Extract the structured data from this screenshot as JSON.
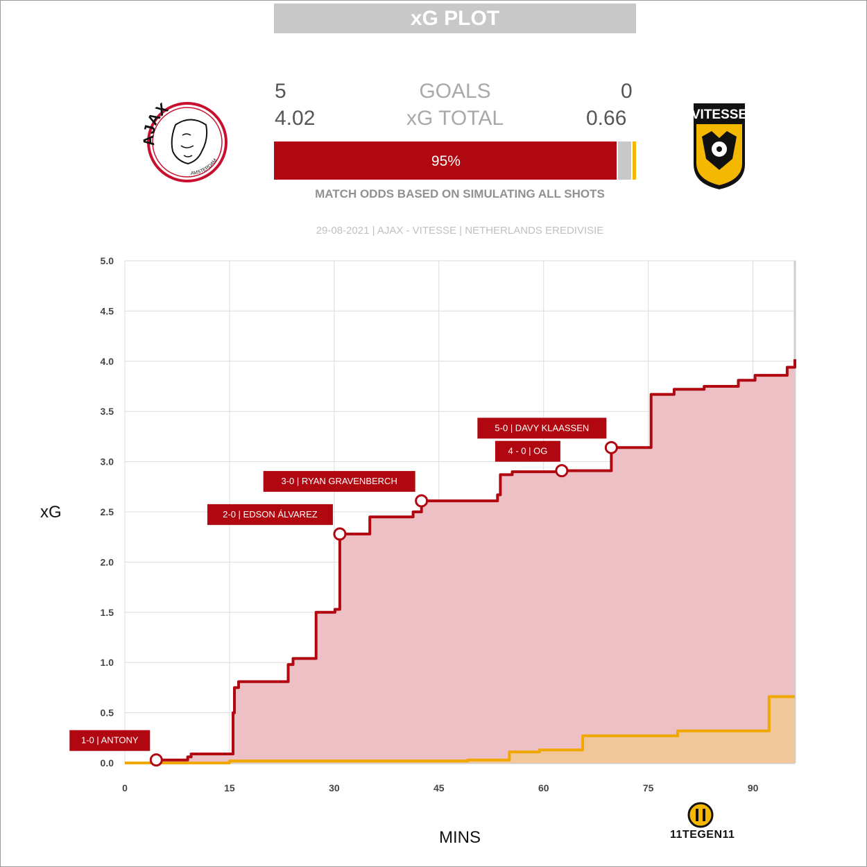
{
  "title": "xG PLOT",
  "home": {
    "team": "AJAX",
    "goals": "5",
    "xg": "4.02",
    "win_pct": 95,
    "color": "#b00710",
    "logo_text_top": "AJAX",
    "logo_text_bottom": "AMSTERDAM"
  },
  "away": {
    "team": "VITESSE",
    "goals": "0",
    "xg": "0.66",
    "win_pct": 1,
    "color": "#f5b800",
    "logo_text": "VITESSE"
  },
  "draw_pct": 4,
  "labels": {
    "goals": "GOALS",
    "xg_total": "xG TOTAL",
    "home_odds": "95%"
  },
  "odds_caption": "MATCH ODDS BASED ON SIMULATING ALL SHOTS",
  "match_info": "29-08-2021 | AJAX - VITESSE | NETHERLANDS EREDIVISIE",
  "branding": {
    "text": "11TEGEN11",
    "icon": "11-tegen-11-logo-icon"
  },
  "chart_data": {
    "type": "line",
    "step": true,
    "xlabel": "MINS",
    "ylabel": "xG",
    "xlim": [
      0,
      96
    ],
    "ylim": [
      0,
      5
    ],
    "xticks": [
      0,
      15,
      30,
      45,
      60,
      75,
      90
    ],
    "yticks": [
      "0.0",
      "0.5",
      "1.0",
      "1.5",
      "2.0",
      "2.5",
      "3.0",
      "3.5",
      "4.0",
      "4.5",
      "5.0"
    ],
    "grid": true,
    "series": [
      {
        "name": "AJAX",
        "color": "#b00710",
        "fill": "#ecc0c4",
        "x": [
          0,
          4.5,
          9,
          9.5,
          15.5,
          15.7,
          16.3,
          23.4,
          24.1,
          27.4,
          30.1,
          30.8,
          35.1,
          41.3,
          42.5,
          53.4,
          53.8,
          55.5,
          62.6,
          69.7,
          75.4,
          78.7,
          83.0,
          87.9,
          90.3,
          94.9,
          96
        ],
        "y": [
          0,
          0.03,
          0.06,
          0.09,
          0.5,
          0.75,
          0.81,
          0.98,
          1.04,
          1.5,
          1.53,
          2.28,
          2.45,
          2.5,
          2.61,
          2.67,
          2.87,
          2.9,
          2.91,
          3.14,
          3.67,
          3.72,
          3.75,
          3.81,
          3.86,
          3.94,
          4.02
        ]
      },
      {
        "name": "VITESSE",
        "color": "#f0a800",
        "fill": "#f1c79a",
        "x": [
          0,
          15.0,
          49.1,
          55.1,
          59.4,
          65.6,
          79.2,
          92.3,
          96
        ],
        "y": [
          0,
          0.02,
          0.03,
          0.11,
          0.13,
          0.27,
          0.32,
          0.66,
          0.66
        ]
      }
    ],
    "goals": [
      {
        "label": "1-0 | ANTONY",
        "x": 4.5,
        "y": 0.03
      },
      {
        "label": "2-0 | EDSON ÁLVAREZ",
        "x": 30.8,
        "y": 2.28
      },
      {
        "label": "3-0 | RYAN GRAVENBERCH",
        "x": 42.5,
        "y": 2.61
      },
      {
        "label": "4 - 0  |  OG",
        "x": 62.6,
        "y": 2.91
      },
      {
        "label": "5-0 | DAVY KLAASSEN",
        "x": 69.7,
        "y": 3.14
      }
    ]
  }
}
